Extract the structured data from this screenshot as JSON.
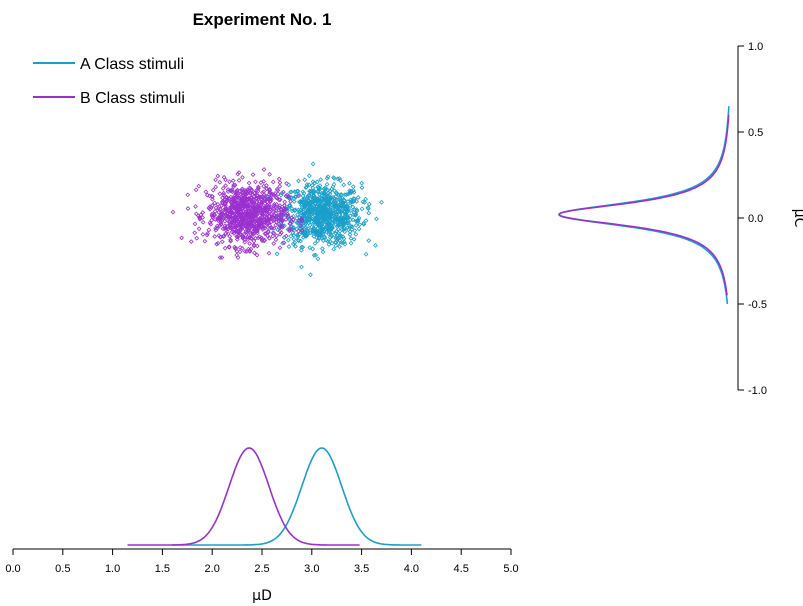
{
  "chart_data": {
    "type": "scatter",
    "title": "Experiment No. 1",
    "xlabel": "μD",
    "ylabel": "μC",
    "x_axis": {
      "range": [
        0.0,
        5.0
      ],
      "ticks": [
        "0.0",
        "0.5",
        "1.0",
        "1.5",
        "2.0",
        "2.5",
        "3.0",
        "3.5",
        "4.0",
        "4.5",
        "5.0"
      ]
    },
    "y_axis": {
      "range": [
        -1.0,
        1.0
      ],
      "ticks": [
        "-1.0",
        "-0.5",
        "0.0",
        "0.5",
        "1.0"
      ]
    },
    "legend_position": "top-left",
    "series": [
      {
        "name": "A Class stimuli",
        "color": "#1a9fcb",
        "scatter": {
          "center": [
            3.1,
            0.02
          ],
          "spread": [
            0.22,
            0.09
          ],
          "range_x": [
            2.55,
            3.7
          ],
          "range_y": [
            -0.33,
            0.45
          ],
          "count": 850
        },
        "marginal_x": {
          "mean": 3.1,
          "sd": 0.2,
          "range": [
            1.6,
            4.1
          ]
        },
        "marginal_y": {
          "mean": 0.02,
          "sd": 0.09,
          "range": [
            -0.5,
            0.65
          ]
        }
      },
      {
        "name": "B Class stimuli",
        "color": "#9b30d0",
        "scatter": {
          "center": [
            2.35,
            0.02
          ],
          "spread": [
            0.22,
            0.09
          ],
          "range_x": [
            1.5,
            2.9
          ],
          "range_y": [
            -0.23,
            0.45
          ],
          "count": 850
        },
        "marginal_x": {
          "mean": 2.37,
          "sd": 0.2,
          "range": [
            1.15,
            3.48
          ]
        },
        "marginal_y": {
          "mean": 0.02,
          "sd": 0.085,
          "range": [
            -0.45,
            0.6
          ]
        }
      }
    ]
  }
}
